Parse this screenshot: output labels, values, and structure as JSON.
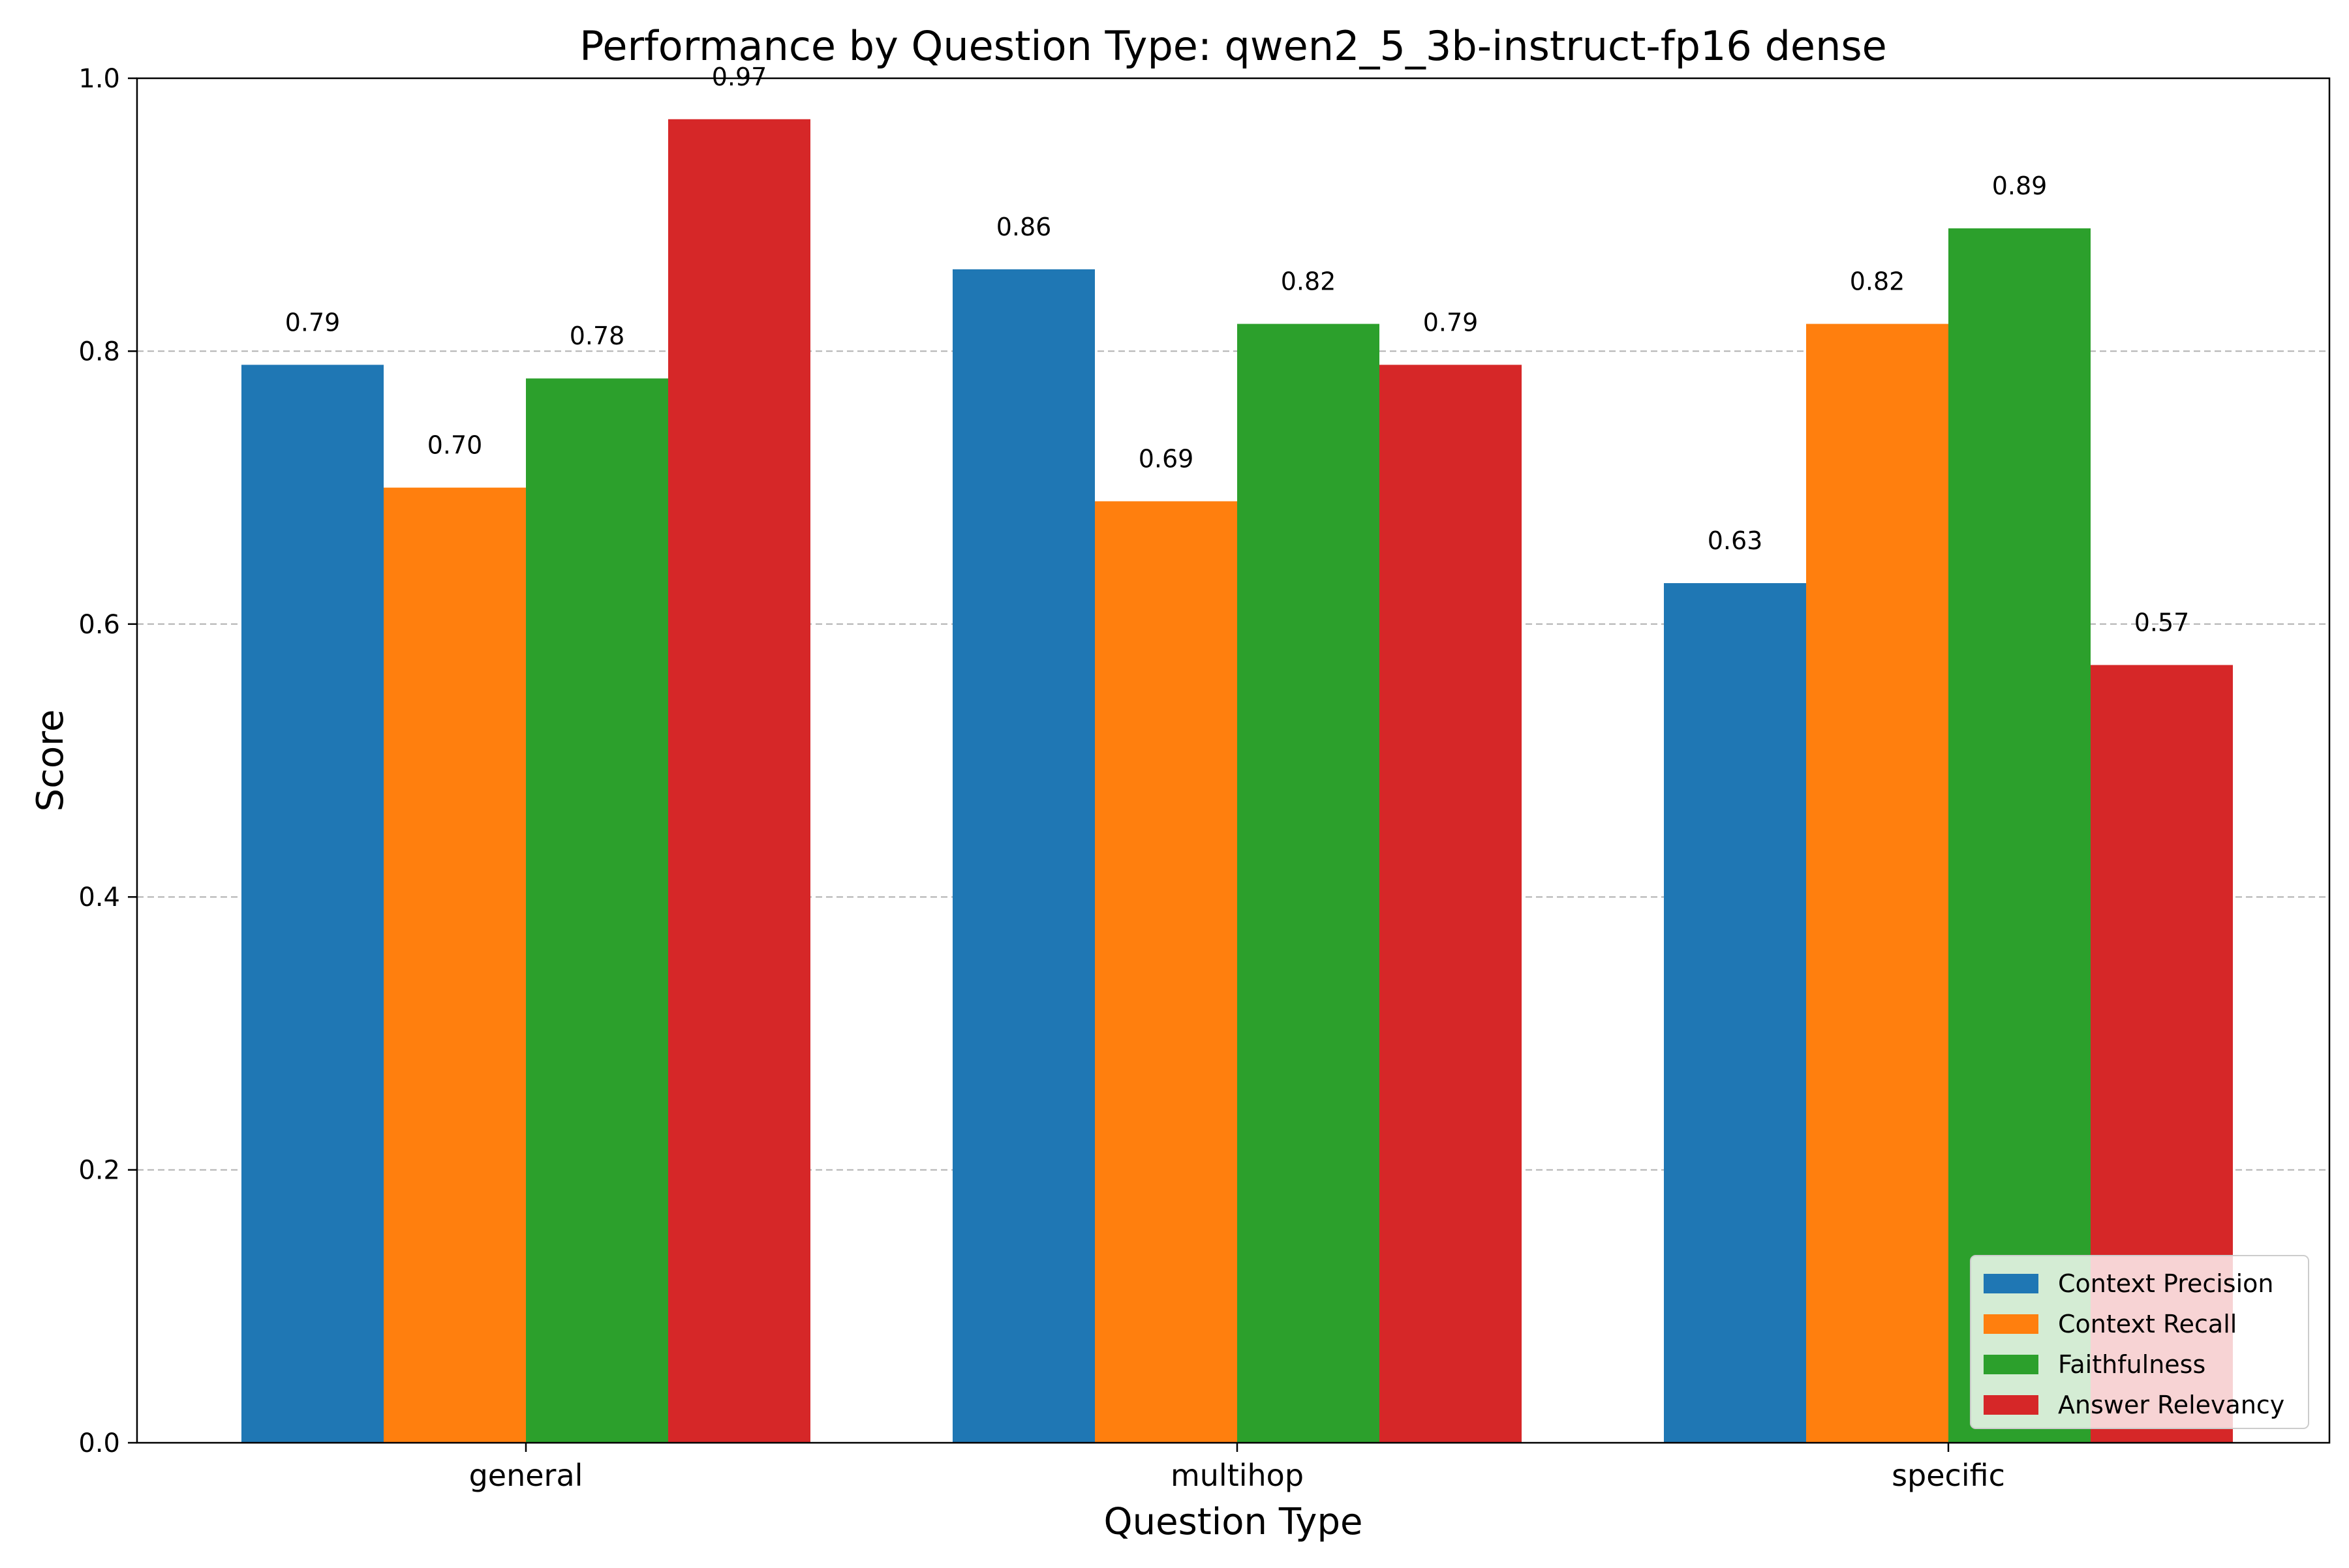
{
  "chart_data": {
    "type": "bar",
    "title": "Performance by Question Type: qwen2_5_3b-instruct-fp16 dense",
    "xlabel": "Question Type",
    "ylabel": "Score",
    "ylim": [
      0,
      1.0
    ],
    "yticks": [
      "0.0",
      "0.2",
      "0.4",
      "0.6",
      "0.8",
      "1.0"
    ],
    "grid": "y-dashed",
    "legend_position": "bottom-right",
    "categories": [
      "general",
      "multihop",
      "specific"
    ],
    "series": [
      {
        "name": "Context Precision",
        "color": "#1f77b4",
        "values": [
          0.79,
          0.86,
          0.63
        ],
        "labels": [
          "0.79",
          "0.86",
          "0.63"
        ]
      },
      {
        "name": "Context Recall",
        "color": "#ff7f0e",
        "values": [
          0.7,
          0.69,
          0.82
        ],
        "labels": [
          "0.70",
          "0.69",
          "0.82"
        ]
      },
      {
        "name": "Faithfulness",
        "color": "#2ca02c",
        "values": [
          0.78,
          0.82,
          0.89
        ],
        "labels": [
          "0.78",
          "0.82",
          "0.89"
        ]
      },
      {
        "name": "Answer Relevancy",
        "color": "#d62728",
        "values": [
          0.97,
          0.79,
          0.57
        ],
        "labels": [
          "0.97",
          "0.79",
          "0.57"
        ]
      }
    ]
  }
}
